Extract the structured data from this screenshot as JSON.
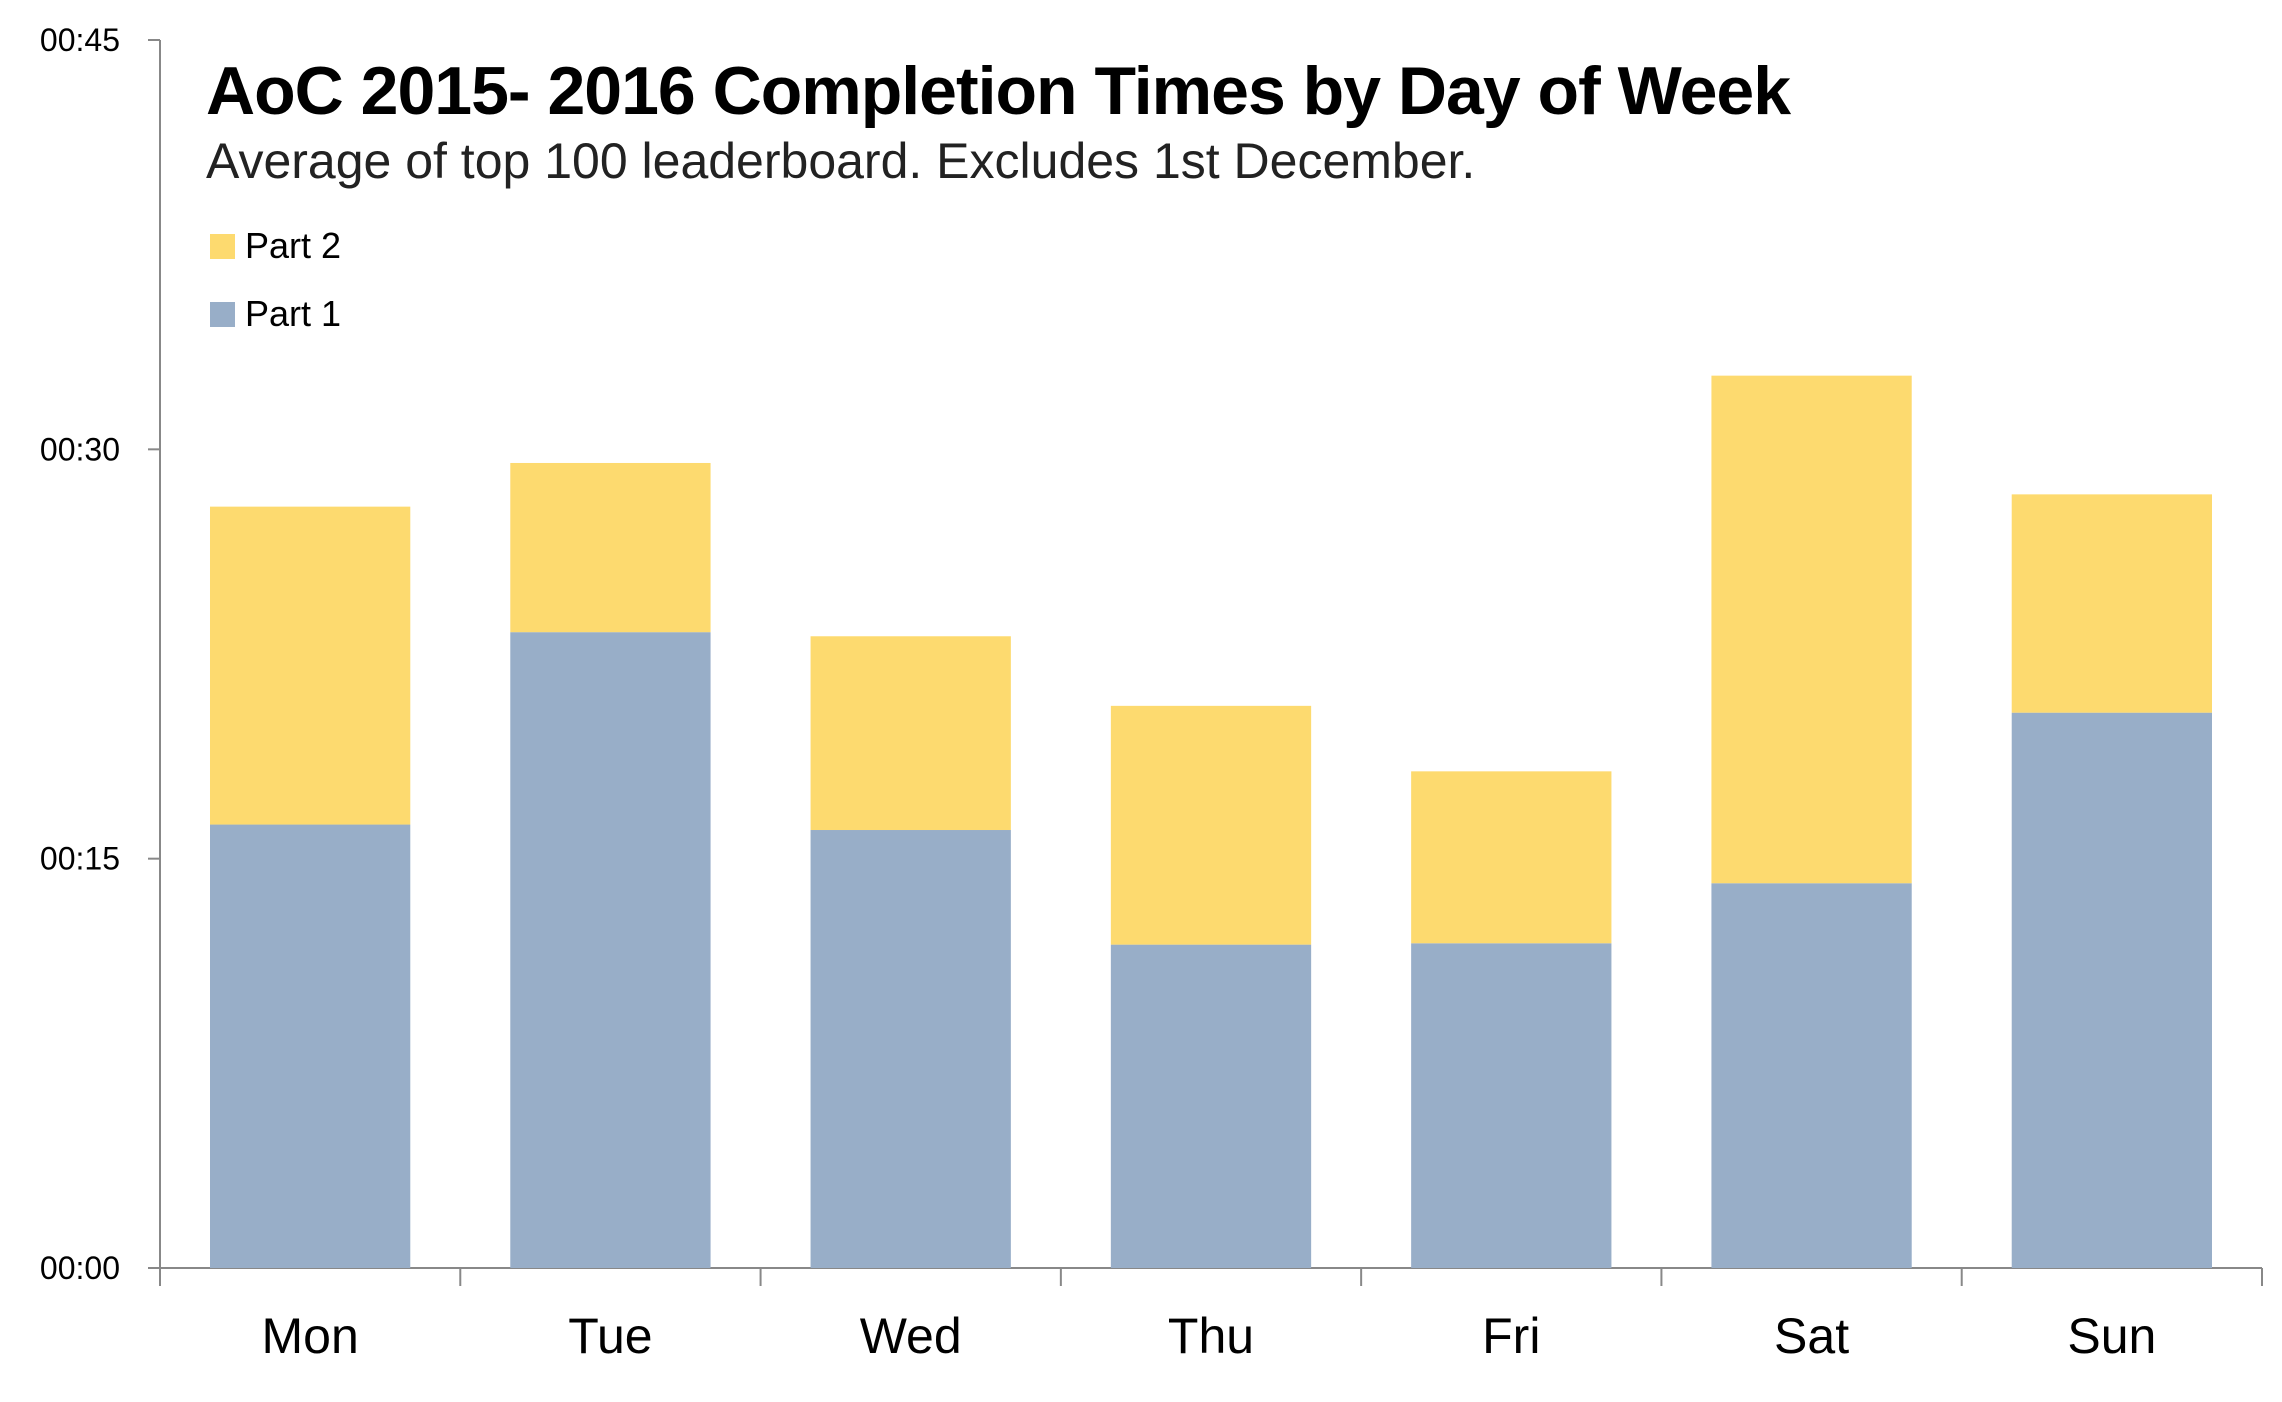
{
  "chart_data": {
    "type": "bar",
    "stacked": true,
    "title": "AoC 2015- 2016 Completion Times by Day of Week",
    "subtitle": "Average of top 100 leaderboard. Excludes 1st December.",
    "categories": [
      "Mon",
      "Tue",
      "Wed",
      "Thu",
      "Fri",
      "Sat",
      "Sun"
    ],
    "series": [
      {
        "name": "Part 1",
        "color": "#98aec8",
        "values": [
          16.25,
          23.3,
          16.05,
          11.85,
          11.9,
          14.1,
          20.35
        ]
      },
      {
        "name": "Part 2",
        "color": "#fdda6f",
        "values": [
          11.65,
          6.2,
          7.1,
          8.75,
          6.3,
          18.6,
          8.0
        ]
      }
    ],
    "ylim": [
      0,
      45
    ],
    "yticks": [
      0,
      15,
      30,
      45
    ],
    "ytick_labels": [
      "00:00",
      "00:15",
      "00:30",
      "00:45"
    ],
    "ylabel": "",
    "xlabel": "",
    "grid": false,
    "legend_position": "top-left"
  }
}
